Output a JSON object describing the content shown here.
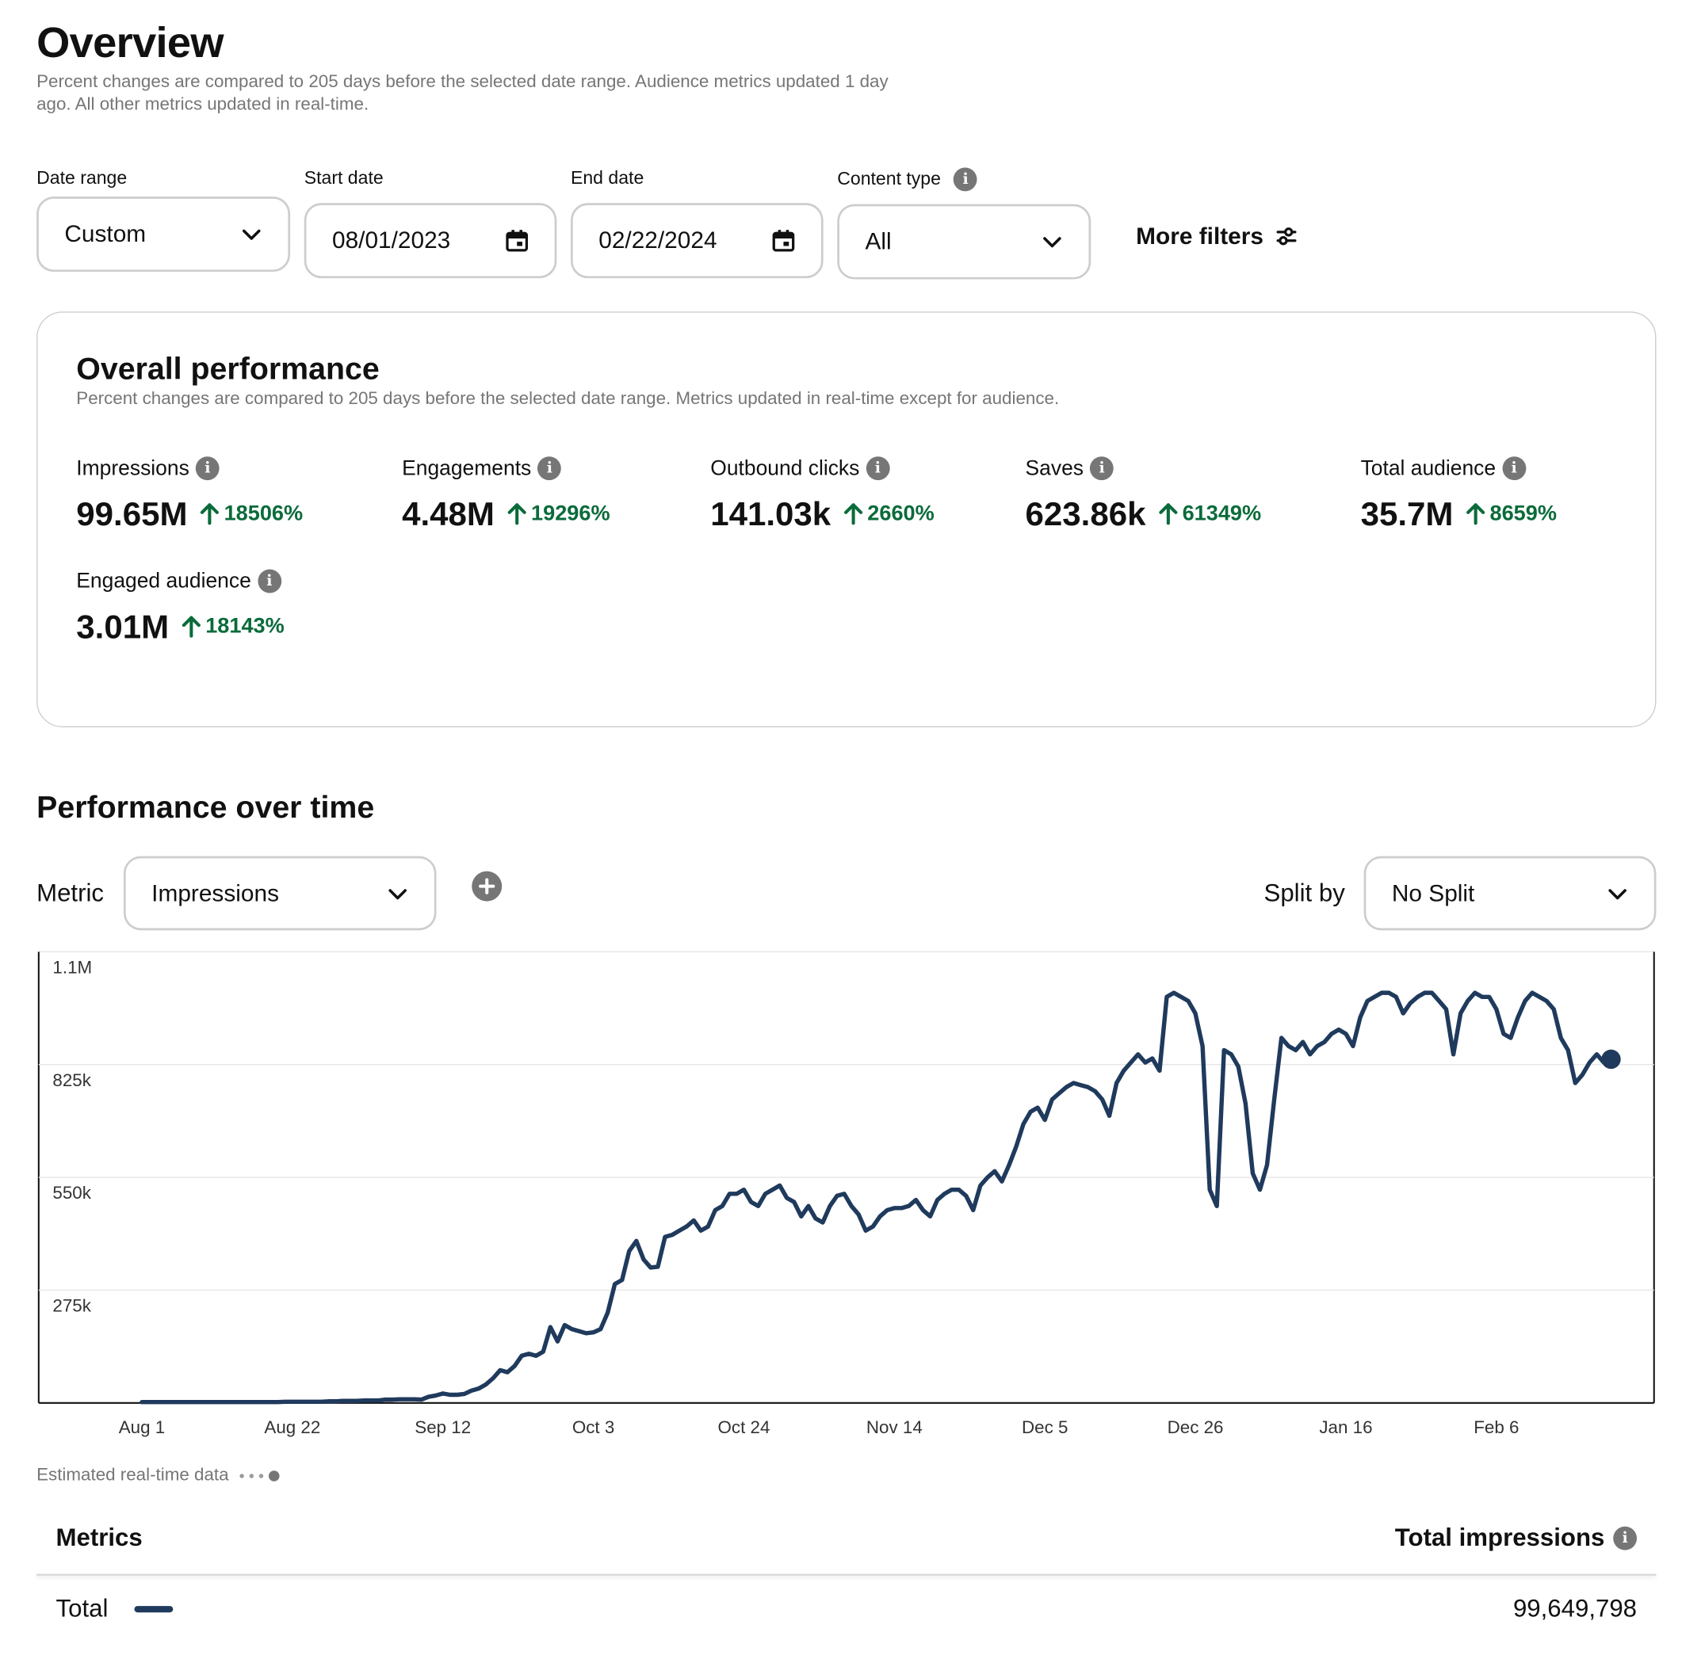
{
  "header": {
    "title": "Overview",
    "subtitle": "Percent changes are compared to 205 days before the selected date range. Audience metrics updated 1 day ago. All other metrics updated in real-time."
  },
  "filters": {
    "date_range": {
      "label": "Date range",
      "value": "Custom"
    },
    "start_date": {
      "label": "Start date",
      "value": "08/01/2023"
    },
    "end_date": {
      "label": "End date",
      "value": "02/22/2024"
    },
    "content_type": {
      "label": "Content type",
      "value": "All"
    },
    "more_filters": "More filters"
  },
  "overall": {
    "title": "Overall performance",
    "subtitle": "Percent changes are compared to 205 days before the selected date range. Metrics updated in real-time except for audience.",
    "metrics": [
      {
        "label": "Impressions",
        "value": "99.65M",
        "change": "18506%"
      },
      {
        "label": "Engagements",
        "value": "4.48M",
        "change": "19296%"
      },
      {
        "label": "Outbound clicks",
        "value": "141.03k",
        "change": "2660%"
      },
      {
        "label": "Saves",
        "value": "623.86k",
        "change": "61349%"
      },
      {
        "label": "Total audience",
        "value": "35.7M",
        "change": "8659%"
      },
      {
        "label": "Engaged audience",
        "value": "3.01M",
        "change": "18143%"
      }
    ]
  },
  "performance": {
    "title": "Performance over time",
    "metric_label": "Metric",
    "metric_value": "Impressions",
    "split_label": "Split by",
    "split_value": "No Split",
    "estimated_label": "Estimated real-time data"
  },
  "colors": {
    "line": "#1f3a5c",
    "positive": "#0a6b3a",
    "border": "#cdcdcd",
    "muted": "#767676"
  },
  "chart_data": {
    "type": "line",
    "title": "",
    "xlabel": "",
    "ylabel": "",
    "y_ticks": [
      "1.1M",
      "825k",
      "550k",
      "275k"
    ],
    "y_tick_values": [
      1100000,
      825000,
      550000,
      275000
    ],
    "ylim": [
      0,
      1100000
    ],
    "x_ticks": [
      "Aug 1",
      "Aug 22",
      "Sep 12",
      "Oct 3",
      "Oct 24",
      "Nov 14",
      "Dec 5",
      "Dec 26",
      "Jan 16",
      "Feb 6"
    ],
    "x_start": "2023-08-01",
    "x_end": "2024-02-22",
    "grid": true,
    "series": [
      {
        "values": [
          2000,
          2000,
          2000,
          2000,
          2000,
          2000,
          2000,
          2000,
          2000,
          2000,
          2000,
          2000,
          2000,
          2000,
          2000,
          2000,
          2000,
          2000,
          2000,
          2000,
          3000,
          3000,
          3000,
          3000,
          3000,
          3000,
          4000,
          4000,
          5000,
          5000,
          5000,
          6000,
          6000,
          6000,
          8000,
          8000,
          9000,
          9000,
          9000,
          8000,
          15000,
          18000,
          23000,
          20000,
          20000,
          22000,
          30000,
          35000,
          45000,
          60000,
          80000,
          75000,
          90000,
          115000,
          120000,
          115000,
          125000,
          185000,
          150000,
          190000,
          180000,
          175000,
          170000,
          172000,
          180000,
          220000,
          290000,
          300000,
          370000,
          395000,
          350000,
          330000,
          332000,
          405000,
          410000,
          420000,
          430000,
          445000,
          420000,
          430000,
          470000,
          480000,
          510000,
          510000,
          520000,
          490000,
          480000,
          510000,
          520000,
          530000,
          500000,
          490000,
          455000,
          480000,
          450000,
          440000,
          480000,
          505000,
          510000,
          480000,
          460000,
          420000,
          430000,
          455000,
          470000,
          475000,
          475000,
          480000,
          495000,
          470000,
          455000,
          495000,
          510000,
          520000,
          520000,
          505000,
          470000,
          530000,
          550000,
          565000,
          540000,
          580000,
          625000,
          680000,
          710000,
          720000,
          690000,
          740000,
          755000,
          770000,
          780000,
          775000,
          770000,
          760000,
          740000,
          700000,
          780000,
          810000,
          830000,
          850000,
          830000,
          840000,
          810000,
          990000,
          1000000,
          990000,
          980000,
          950000,
          870000,
          520000,
          480000,
          860000,
          850000,
          820000,
          730000,
          560000,
          520000,
          580000,
          740000,
          890000,
          870000,
          860000,
          880000,
          850000,
          870000,
          880000,
          900000,
          910000,
          900000,
          870000,
          940000,
          980000,
          990000,
          1000000,
          1000000,
          990000,
          950000,
          975000,
          990000,
          1000000,
          1000000,
          980000,
          960000,
          850000,
          950000,
          980000,
          1000000,
          990000,
          990000,
          960000,
          900000,
          890000,
          940000,
          980000,
          1000000,
          990000,
          980000,
          960000,
          890000,
          860000,
          780000,
          800000,
          830000,
          850000,
          830000
        ]
      }
    ],
    "last_point": {
      "date": "Feb 22",
      "value": 838000
    }
  },
  "table": {
    "col_left": "Metrics",
    "col_right": "Total impressions",
    "rows": [
      {
        "label": "Total",
        "value": "99,649,798"
      }
    ]
  }
}
